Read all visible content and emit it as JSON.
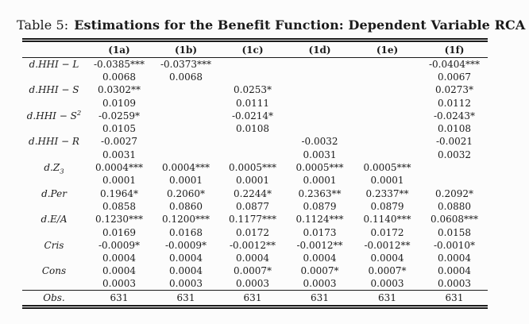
{
  "title": {
    "prefix": "Table 5:",
    "main": "Estimations for the Benefit Function: Dependent Variable RCA"
  },
  "table": {
    "column_headers": [
      "(1a)",
      "(1b)",
      "(1c)",
      "(1d)",
      "(1e)",
      "(1f)"
    ],
    "rows": [
      {
        "label": {
          "text": "d.HHI − L"
        },
        "cells": [
          {
            "coef": "-0.0385***",
            "se": "0.0068"
          },
          {
            "coef": "-0.0373***",
            "se": "0.0068"
          },
          {},
          {},
          {},
          {
            "coef": "-0.0404***",
            "se": "0.0067"
          }
        ]
      },
      {
        "label": {
          "text": "d.HHI − S"
        },
        "cells": [
          {
            "coef": "0.0302**",
            "se": "0.0109"
          },
          {},
          {
            "coef": "0.0253*",
            "se": "0.0111"
          },
          {},
          {},
          {
            "coef": "0.0273*",
            "se": "0.0112"
          }
        ]
      },
      {
        "label": {
          "text": "d.HHI − S",
          "sup": "2"
        },
        "cells": [
          {
            "coef": "-0.0259*",
            "se": "0.0105"
          },
          {},
          {
            "coef": "-0.0214*",
            "se": "0.0108"
          },
          {},
          {},
          {
            "coef": "-0.0243*",
            "se": "0.0108"
          }
        ]
      },
      {
        "label": {
          "text": "d.HHI − R"
        },
        "cells": [
          {
            "coef": "-0.0027",
            "se": "0.0031"
          },
          {},
          {},
          {
            "coef": "-0.0032",
            "se": "0.0031"
          },
          {},
          {
            "coef": "-0.0021",
            "se": "0.0032"
          }
        ]
      },
      {
        "label": {
          "text": "d.Z",
          "sub": "3"
        },
        "cells": [
          {
            "coef": "0.0004***",
            "se": "0.0001"
          },
          {
            "coef": "0.0004***",
            "se": "0.0001"
          },
          {
            "coef": "0.0005***",
            "se": "0.0001"
          },
          {
            "coef": "0.0005***",
            "se": "0.0001"
          },
          {
            "coef": "0.0005***",
            "se": "0.0001"
          },
          {}
        ]
      },
      {
        "label": {
          "text": "d.Per"
        },
        "cells": [
          {
            "coef": "0.1964*",
            "se": "0.0858"
          },
          {
            "coef": "0.2060*",
            "se": "0.0860"
          },
          {
            "coef": "0.2244*",
            "se": "0.0877"
          },
          {
            "coef": "0.2363**",
            "se": "0.0879"
          },
          {
            "coef": "0.2337**",
            "se": "0.0879"
          },
          {
            "coef": "0.2092*",
            "se": "0.0880"
          }
        ]
      },
      {
        "label": {
          "text": "d.E/A"
        },
        "cells": [
          {
            "coef": "0.1230***",
            "se": "0.0169"
          },
          {
            "coef": "0.1200***",
            "se": "0.0168"
          },
          {
            "coef": "0.1177***",
            "se": "0.0172"
          },
          {
            "coef": "0.1124***",
            "se": "0.0173"
          },
          {
            "coef": "0.1140***",
            "se": "0.0172"
          },
          {
            "coef": "0.0608***",
            "se": "0.0158"
          }
        ]
      },
      {
        "label": {
          "text": "Cris"
        },
        "cells": [
          {
            "coef": "-0.0009*",
            "se": "0.0004"
          },
          {
            "coef": "-0.0009*",
            "se": "0.0004"
          },
          {
            "coef": "-0.0012**",
            "se": "0.0004"
          },
          {
            "coef": "-0.0012**",
            "se": "0.0004"
          },
          {
            "coef": "-0.0012**",
            "se": "0.0004"
          },
          {
            "coef": "-0.0010*",
            "se": "0.0004"
          }
        ]
      },
      {
        "label": {
          "text": "Cons"
        },
        "cells": [
          {
            "coef": "0.0004",
            "se": "0.0003"
          },
          {
            "coef": "0.0004",
            "se": "0.0003"
          },
          {
            "coef": "0.0007*",
            "se": "0.0003"
          },
          {
            "coef": "0.0007*",
            "se": "0.0003"
          },
          {
            "coef": "0.0007*",
            "se": "0.0003"
          },
          {
            "coef": "0.0004",
            "se": "0.0003"
          }
        ]
      }
    ],
    "footer": {
      "label": "Obs.",
      "values": [
        "631",
        "631",
        "631",
        "631",
        "631",
        "631"
      ]
    }
  }
}
